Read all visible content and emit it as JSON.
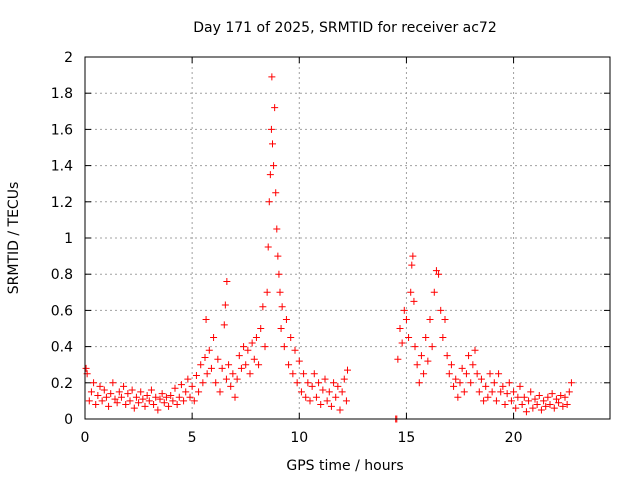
{
  "chart_data": {
    "type": "scatter",
    "title": "Day 171 of 2025, SRMTID for receiver ac72",
    "xlabel": "GPS time / hours",
    "ylabel": "SRMTID / TECUs",
    "xlim": [
      0,
      24.5
    ],
    "ylim": [
      0,
      2
    ],
    "x_ticks": [
      0,
      5,
      10,
      15,
      20
    ],
    "y_ticks": [
      0,
      0.2,
      0.4,
      0.6,
      0.8,
      1,
      1.2,
      1.4,
      1.6,
      1.8,
      2
    ],
    "x_tick_labels": [
      "0",
      "5",
      "10",
      "15",
      "20"
    ],
    "y_tick_labels": [
      "0",
      "0.2",
      "0.4",
      "0.6",
      "0.8",
      "1",
      "1.2",
      "1.4",
      "1.6",
      "1.8",
      "2"
    ],
    "grid": true,
    "marker": "+",
    "marker_color": "#ff0000",
    "series": [
      {
        "name": "SRMTID",
        "points": [
          [
            0.05,
            0.28
          ],
          [
            0.1,
            0.25
          ],
          [
            0.2,
            0.1
          ],
          [
            0.3,
            0.15
          ],
          [
            0.4,
            0.2
          ],
          [
            0.5,
            0.08
          ],
          [
            0.6,
            0.13
          ],
          [
            0.7,
            0.18
          ],
          [
            0.8,
            0.1
          ],
          [
            0.9,
            0.16
          ],
          [
            1.0,
            0.12
          ],
          [
            1.1,
            0.07
          ],
          [
            1.2,
            0.14
          ],
          [
            1.3,
            0.2
          ],
          [
            1.4,
            0.11
          ],
          [
            1.5,
            0.09
          ],
          [
            1.6,
            0.15
          ],
          [
            1.7,
            0.12
          ],
          [
            1.8,
            0.18
          ],
          [
            1.9,
            0.08
          ],
          [
            2.0,
            0.14
          ],
          [
            2.1,
            0.1
          ],
          [
            2.2,
            0.16
          ],
          [
            2.3,
            0.06
          ],
          [
            2.4,
            0.12
          ],
          [
            2.5,
            0.09
          ],
          [
            2.6,
            0.15
          ],
          [
            2.7,
            0.11
          ],
          [
            2.8,
            0.07
          ],
          [
            2.9,
            0.13
          ],
          [
            3.0,
            0.1
          ],
          [
            3.1,
            0.16
          ],
          [
            3.2,
            0.08
          ],
          [
            3.3,
            0.12
          ],
          [
            3.4,
            0.05
          ],
          [
            3.5,
            0.11
          ],
          [
            3.6,
            0.14
          ],
          [
            3.7,
            0.09
          ],
          [
            3.8,
            0.12
          ],
          [
            3.9,
            0.07
          ],
          [
            4.0,
            0.13
          ],
          [
            4.1,
            0.1
          ],
          [
            4.2,
            0.17
          ],
          [
            4.3,
            0.08
          ],
          [
            4.4,
            0.12
          ],
          [
            4.5,
            0.19
          ],
          [
            4.6,
            0.1
          ],
          [
            4.7,
            0.15
          ],
          [
            4.8,
            0.22
          ],
          [
            4.9,
            0.12
          ],
          [
            5.0,
            0.18
          ],
          [
            5.1,
            0.1
          ],
          [
            5.2,
            0.24
          ],
          [
            5.3,
            0.15
          ],
          [
            5.4,
            0.3
          ],
          [
            5.5,
            0.2
          ],
          [
            5.6,
            0.34
          ],
          [
            5.65,
            0.55
          ],
          [
            5.7,
            0.25
          ],
          [
            5.8,
            0.38
          ],
          [
            5.9,
            0.28
          ],
          [
            6.0,
            0.45
          ],
          [
            6.1,
            0.2
          ],
          [
            6.2,
            0.33
          ],
          [
            6.3,
            0.15
          ],
          [
            6.4,
            0.28
          ],
          [
            6.5,
            0.52
          ],
          [
            6.55,
            0.63
          ],
          [
            6.6,
            0.22
          ],
          [
            6.62,
            0.76
          ],
          [
            6.7,
            0.3
          ],
          [
            6.8,
            0.18
          ],
          [
            6.9,
            0.25
          ],
          [
            7.0,
            0.12
          ],
          [
            7.1,
            0.22
          ],
          [
            7.2,
            0.35
          ],
          [
            7.3,
            0.28
          ],
          [
            7.4,
            0.4
          ],
          [
            7.5,
            0.3
          ],
          [
            7.6,
            0.38
          ],
          [
            7.7,
            0.25
          ],
          [
            7.8,
            0.42
          ],
          [
            7.9,
            0.33
          ],
          [
            8.0,
            0.45
          ],
          [
            8.1,
            0.3
          ],
          [
            8.2,
            0.5
          ],
          [
            8.3,
            0.62
          ],
          [
            8.4,
            0.4
          ],
          [
            8.5,
            0.7
          ],
          [
            8.55,
            0.95
          ],
          [
            8.6,
            1.2
          ],
          [
            8.65,
            1.35
          ],
          [
            8.7,
            1.6
          ],
          [
            8.72,
            1.89
          ],
          [
            8.75,
            1.52
          ],
          [
            8.8,
            1.4
          ],
          [
            8.85,
            1.72
          ],
          [
            8.9,
            1.25
          ],
          [
            8.95,
            1.05
          ],
          [
            9.0,
            0.9
          ],
          [
            9.05,
            0.8
          ],
          [
            9.1,
            0.7
          ],
          [
            9.15,
            0.5
          ],
          [
            9.2,
            0.62
          ],
          [
            9.3,
            0.4
          ],
          [
            9.4,
            0.55
          ],
          [
            9.5,
            0.3
          ],
          [
            9.6,
            0.45
          ],
          [
            9.7,
            0.25
          ],
          [
            9.8,
            0.38
          ],
          [
            9.9,
            0.2
          ],
          [
            10.0,
            0.32
          ],
          [
            10.1,
            0.15
          ],
          [
            10.2,
            0.25
          ],
          [
            10.3,
            0.12
          ],
          [
            10.4,
            0.2
          ],
          [
            10.5,
            0.1
          ],
          [
            10.6,
            0.18
          ],
          [
            10.7,
            0.25
          ],
          [
            10.8,
            0.12
          ],
          [
            10.9,
            0.2
          ],
          [
            11.0,
            0.08
          ],
          [
            11.1,
            0.16
          ],
          [
            11.2,
            0.22
          ],
          [
            11.3,
            0.1
          ],
          [
            11.4,
            0.15
          ],
          [
            11.5,
            0.07
          ],
          [
            11.6,
            0.2
          ],
          [
            11.7,
            0.12
          ],
          [
            11.8,
            0.18
          ],
          [
            11.9,
            0.05
          ],
          [
            12.0,
            0.15
          ],
          [
            12.1,
            0.22
          ],
          [
            12.2,
            0.1
          ],
          [
            12.25,
            0.27
          ],
          [
            14.5,
            0.0
          ],
          [
            14.55,
            0.0
          ],
          [
            14.6,
            0.33
          ],
          [
            14.7,
            0.5
          ],
          [
            14.8,
            0.42
          ],
          [
            14.9,
            0.6
          ],
          [
            15.0,
            0.55
          ],
          [
            15.1,
            0.45
          ],
          [
            15.2,
            0.7
          ],
          [
            15.25,
            0.85
          ],
          [
            15.3,
            0.9
          ],
          [
            15.35,
            0.65
          ],
          [
            15.4,
            0.4
          ],
          [
            15.5,
            0.3
          ],
          [
            15.6,
            0.2
          ],
          [
            15.7,
            0.35
          ],
          [
            15.8,
            0.25
          ],
          [
            15.9,
            0.45
          ],
          [
            16.0,
            0.32
          ],
          [
            16.1,
            0.55
          ],
          [
            16.2,
            0.4
          ],
          [
            16.3,
            0.7
          ],
          [
            16.4,
            0.82
          ],
          [
            16.5,
            0.8
          ],
          [
            16.6,
            0.6
          ],
          [
            16.7,
            0.45
          ],
          [
            16.8,
            0.55
          ],
          [
            16.9,
            0.35
          ],
          [
            17.0,
            0.25
          ],
          [
            17.1,
            0.3
          ],
          [
            17.2,
            0.18
          ],
          [
            17.3,
            0.22
          ],
          [
            17.4,
            0.12
          ],
          [
            17.5,
            0.2
          ],
          [
            17.6,
            0.28
          ],
          [
            17.7,
            0.15
          ],
          [
            17.8,
            0.25
          ],
          [
            17.9,
            0.35
          ],
          [
            18.0,
            0.2
          ],
          [
            18.1,
            0.3
          ],
          [
            18.2,
            0.38
          ],
          [
            18.3,
            0.25
          ],
          [
            18.4,
            0.15
          ],
          [
            18.5,
            0.22
          ],
          [
            18.6,
            0.1
          ],
          [
            18.7,
            0.18
          ],
          [
            18.8,
            0.12
          ],
          [
            18.9,
            0.25
          ],
          [
            19.0,
            0.15
          ],
          [
            19.1,
            0.2
          ],
          [
            19.2,
            0.1
          ],
          [
            19.3,
            0.25
          ],
          [
            19.4,
            0.15
          ],
          [
            19.5,
            0.18
          ],
          [
            19.6,
            0.08
          ],
          [
            19.7,
            0.14
          ],
          [
            19.8,
            0.2
          ],
          [
            19.9,
            0.1
          ],
          [
            20.0,
            0.15
          ],
          [
            20.1,
            0.06
          ],
          [
            20.2,
            0.12
          ],
          [
            20.3,
            0.18
          ],
          [
            20.4,
            0.08
          ],
          [
            20.5,
            0.12
          ],
          [
            20.6,
            0.04
          ],
          [
            20.7,
            0.1
          ],
          [
            20.8,
            0.15
          ],
          [
            20.9,
            0.06
          ],
          [
            21.0,
            0.11
          ],
          [
            21.1,
            0.08
          ],
          [
            21.2,
            0.13
          ],
          [
            21.3,
            0.05
          ],
          [
            21.4,
            0.1
          ],
          [
            21.5,
            0.07
          ],
          [
            21.6,
            0.12
          ],
          [
            21.7,
            0.08
          ],
          [
            21.8,
            0.14
          ],
          [
            21.9,
            0.06
          ],
          [
            22.0,
            0.11
          ],
          [
            22.1,
            0.09
          ],
          [
            22.2,
            0.13
          ],
          [
            22.3,
            0.07
          ],
          [
            22.4,
            0.12
          ],
          [
            22.5,
            0.08
          ],
          [
            22.6,
            0.15
          ],
          [
            22.7,
            0.2
          ]
        ]
      }
    ]
  }
}
